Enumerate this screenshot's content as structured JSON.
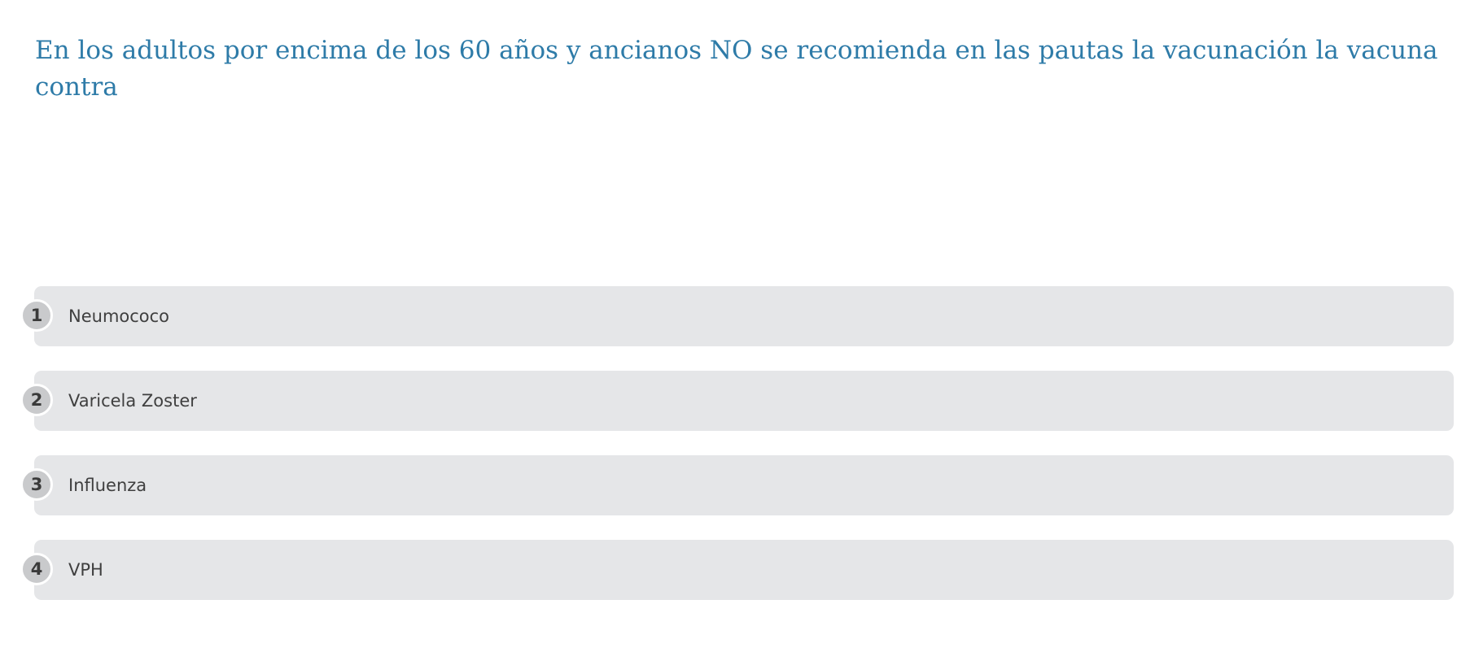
{
  "question": {
    "text": "En los adultos por encima de los 60 años y ancianos NO se recomienda en las pautas la vacunación la vacuna contra"
  },
  "options": [
    {
      "number": "1",
      "label": "Neumococo"
    },
    {
      "number": "2",
      "label": "Varicela Zoster"
    },
    {
      "number": "3",
      "label": "Influenza"
    },
    {
      "number": "4",
      "label": "VPH"
    }
  ],
  "colors": {
    "question_text": "#2e7ba8",
    "option_background": "#e5e6e8",
    "number_badge": "#c9cacc"
  }
}
